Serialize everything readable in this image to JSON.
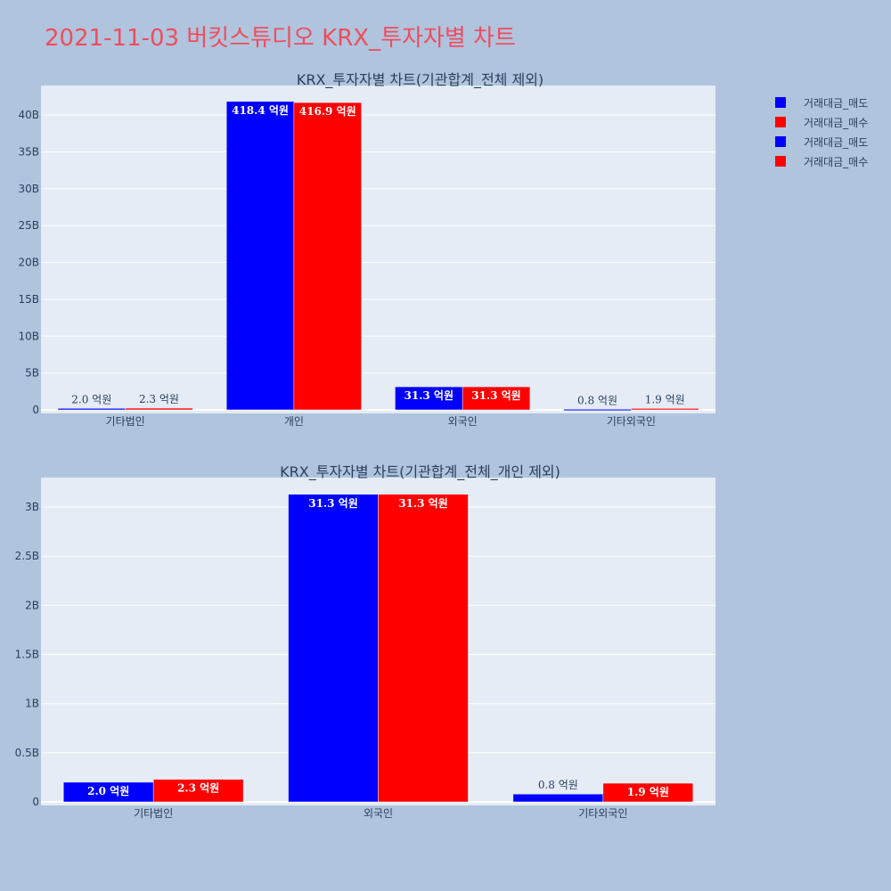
{
  "page_title": "2021-11-03 버킷스튜디오 KRX_투자자별 차트",
  "colors": {
    "sell": "#0000ff",
    "buy": "#ff0000",
    "title": "#ef4d5e",
    "background": "#b0c4de",
    "plot_bg": "#e5ecf6"
  },
  "legend": [
    {
      "label": "거래대금_매도",
      "color": "#0000ff"
    },
    {
      "label": "거래대금_매수",
      "color": "#ff0000"
    },
    {
      "label": "거래대금_매도",
      "color": "#0000ff"
    },
    {
      "label": "거래대금_매수",
      "color": "#ff0000"
    }
  ],
  "chart_data": [
    {
      "type": "bar",
      "title": "KRX_투자자별 차트(기관합계_전체 제외)",
      "categories": [
        "기타법인",
        "개인",
        "외국인",
        "기타외국인"
      ],
      "series": [
        {
          "name": "거래대금_매도",
          "color": "#0000ff",
          "values": [
            200000000,
            41840000000,
            3130000000,
            80000000
          ],
          "labels": [
            "2.0 억원",
            "418.4 억원",
            "31.3 억원",
            "0.8 억원"
          ]
        },
        {
          "name": "거래대금_매수",
          "color": "#ff0000",
          "values": [
            230000000,
            41690000000,
            3130000000,
            190000000
          ],
          "labels": [
            "2.3 억원",
            "416.9 억원",
            "31.3 억원",
            "1.9 억원"
          ]
        }
      ],
      "ylim": [
        0,
        44000000000
      ],
      "yticks": [
        0,
        5000000000,
        10000000000,
        15000000000,
        20000000000,
        25000000000,
        30000000000,
        35000000000,
        40000000000
      ],
      "ytick_labels": [
        "0",
        "5B",
        "10B",
        "15B",
        "20B",
        "25B",
        "30B",
        "35B",
        "40B"
      ],
      "grid": true
    },
    {
      "type": "bar",
      "title": "KRX_투자자별 차트(기관합계_전체_개인 제외)",
      "categories": [
        "기타법인",
        "외국인",
        "기타외국인"
      ],
      "series": [
        {
          "name": "거래대금_매도",
          "color": "#0000ff",
          "values": [
            200000000,
            3130000000,
            80000000
          ],
          "labels": [
            "2.0 억원",
            "31.3 억원",
            "0.8 억원"
          ]
        },
        {
          "name": "거래대금_매수",
          "color": "#ff0000",
          "values": [
            230000000,
            3130000000,
            190000000
          ],
          "labels": [
            "2.3 억원",
            "31.3 억원",
            "1.9 억원"
          ]
        }
      ],
      "ylim": [
        0,
        3300000000
      ],
      "yticks": [
        0,
        500000000,
        1000000000,
        1500000000,
        2000000000,
        2500000000,
        3000000000
      ],
      "ytick_labels": [
        "0",
        "0.5B",
        "1B",
        "1.5B",
        "2B",
        "2.5B",
        "3B"
      ],
      "grid": true
    }
  ]
}
